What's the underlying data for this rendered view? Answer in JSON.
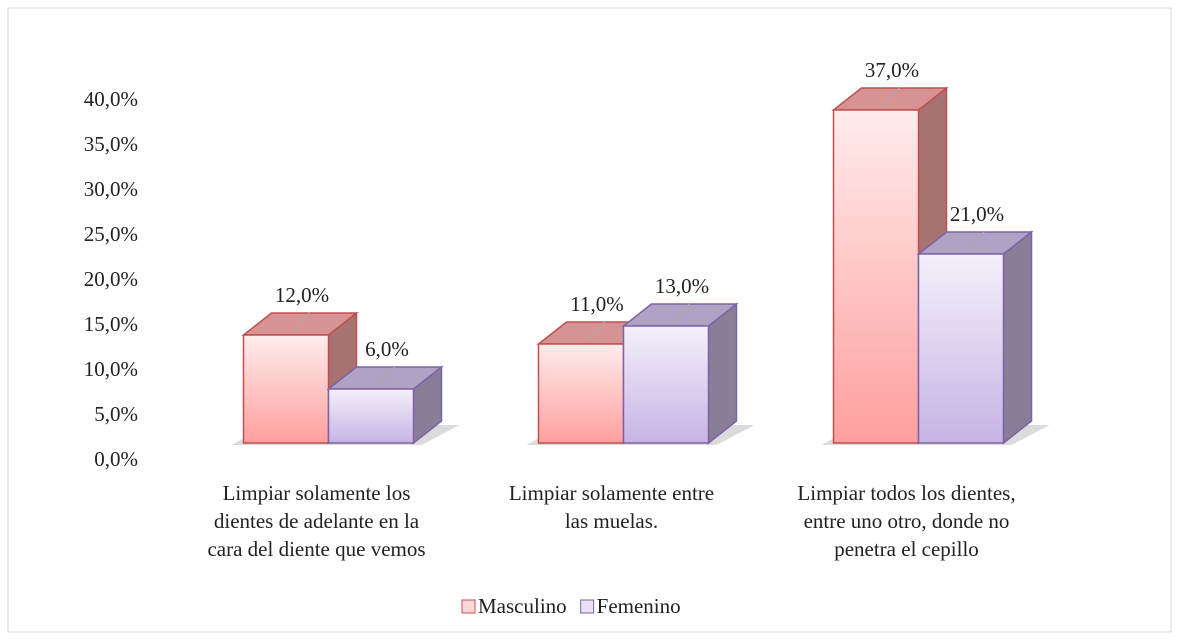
{
  "chart_data": {
    "type": "bar3d",
    "categories": [
      "Limpiar solamente los\ndientes de adelante en la\ncara del diente que vemos",
      "Limpiar solamente entre\nlas muelas.",
      "Limpiar todos los dientes,\nentre uno otro, donde no\npenetra el cepillo"
    ],
    "series": [
      {
        "name": "Masculino",
        "color": "#ff9f9f",
        "stroke": "#c0504d",
        "values": [
          12,
          11,
          37
        ],
        "value_labels": [
          "12,0%",
          "11,0%",
          "37,0%"
        ]
      },
      {
        "name": "Femenino",
        "color": "#c6b4e4",
        "stroke": "#7e62a8",
        "values": [
          6,
          13,
          21
        ],
        "value_labels": [
          "6,0%",
          "13,0%",
          "21,0%"
        ]
      }
    ],
    "ylim": [
      0,
      40
    ],
    "yticks": [
      {
        "value": 0,
        "label": "0,0%"
      },
      {
        "value": 5,
        "label": "5,0%"
      },
      {
        "value": 10,
        "label": "10,0%"
      },
      {
        "value": 15,
        "label": "15,0%"
      },
      {
        "value": 20,
        "label": "20,0%"
      },
      {
        "value": 25,
        "label": "25,0%"
      },
      {
        "value": 30,
        "label": "30,0%"
      },
      {
        "value": 35,
        "label": "35,0%"
      },
      {
        "value": 40,
        "label": "40,0%"
      }
    ],
    "legend": "bottom"
  }
}
